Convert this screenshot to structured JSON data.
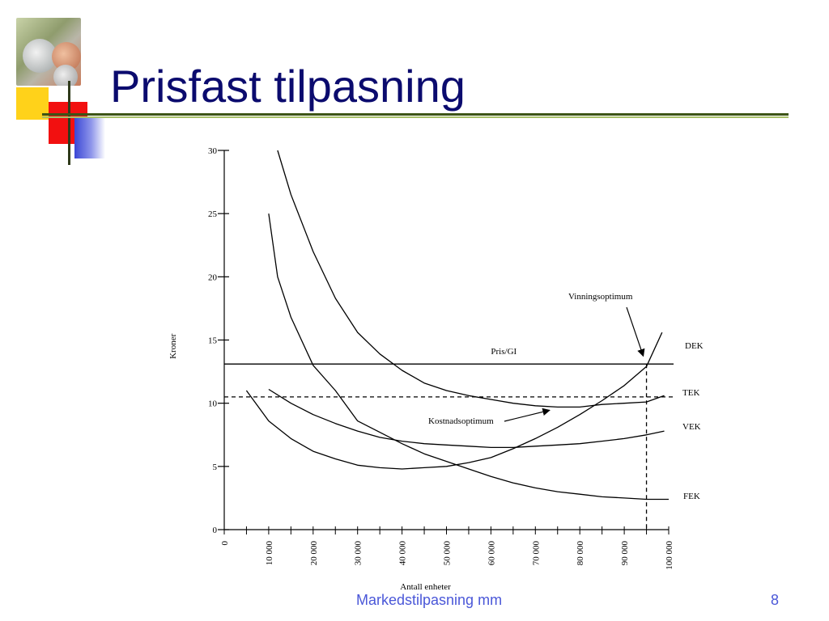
{
  "slide": {
    "title": "Prisfast tilpasning",
    "footer": "Markedstilpasning mm",
    "page_number": "8"
  },
  "colors": {
    "title": "#0b0b6e",
    "footer": "#4a57d8",
    "accent_line": "#3d5416"
  },
  "chart_data": {
    "type": "line",
    "title": "",
    "xlabel": "Antall enheter",
    "ylabel": "Kroner",
    "xlim": [
      0,
      100000
    ],
    "ylim": [
      0,
      30
    ],
    "xticks": [
      0,
      10000,
      20000,
      30000,
      40000,
      50000,
      60000,
      70000,
      80000,
      90000,
      100000
    ],
    "xtick_labels": [
      "0",
      "10 000",
      "20 000",
      "30 000",
      "40 000",
      "50 000",
      "60 000",
      "70 000",
      "80 000",
      "90 000",
      "100 000"
    ],
    "yticks": [
      0,
      5,
      10,
      15,
      20,
      25,
      30
    ],
    "ytick_labels": [
      "0",
      "5",
      "10",
      "15",
      "20",
      "25",
      "30"
    ],
    "series": [
      {
        "name": "DEK",
        "x": [
          12000,
          15000,
          20000,
          25000,
          30000,
          35000,
          40000,
          45000,
          50000,
          55000,
          60000,
          65000,
          70000,
          75000,
          80000,
          85000,
          90000,
          95000,
          99000
        ],
        "y": [
          30,
          26.5,
          22,
          18.3,
          15.6,
          13.9,
          12.6,
          11.6,
          11.0,
          10.6,
          10.3,
          10.0,
          9.8,
          9.7,
          9.7,
          9.9,
          10.0,
          10.1,
          10.6
        ]
      },
      {
        "name": "TEK",
        "x": [
          5000,
          10000,
          15000,
          20000,
          25000,
          30000,
          35000,
          40000,
          45000,
          50000,
          55000,
          60000,
          65000,
          70000,
          75000,
          80000,
          85000,
          90000,
          95000,
          98500
        ],
        "y": [
          11.0,
          8.6,
          7.2,
          6.2,
          5.6,
          5.1,
          4.9,
          4.8,
          4.9,
          5.0,
          5.3,
          5.7,
          6.4,
          7.2,
          8.1,
          9.1,
          10.2,
          11.4,
          12.9,
          15.6
        ]
      },
      {
        "name": "VEK",
        "x": [
          10000,
          15000,
          20000,
          25000,
          30000,
          35000,
          40000,
          45000,
          50000,
          55000,
          60000,
          65000,
          70000,
          75000,
          80000,
          85000,
          90000,
          95000,
          99000
        ],
        "y": [
          11.1,
          10.0,
          9.1,
          8.4,
          7.8,
          7.3,
          7.0,
          6.8,
          6.7,
          6.6,
          6.5,
          6.5,
          6.6,
          6.7,
          6.8,
          7.0,
          7.2,
          7.5,
          7.8
        ]
      },
      {
        "name": "FEK",
        "x": [
          10000,
          12000,
          15000,
          20000,
          25000,
          30000,
          35000,
          40000,
          45000,
          50000,
          55000,
          60000,
          65000,
          70000,
          75000,
          80000,
          85000,
          90000,
          95000,
          100000
        ],
        "y": [
          25.0,
          20.0,
          16.8,
          13.0,
          11.0,
          8.6,
          7.7,
          6.8,
          6.0,
          5.4,
          4.8,
          4.2,
          3.7,
          3.3,
          3.0,
          2.8,
          2.6,
          2.5,
          2.4,
          2.4
        ]
      }
    ],
    "reference_lines": [
      {
        "label": "Pris/GI",
        "y": 13.1,
        "style": "solid"
      },
      {
        "label": "",
        "y": 10.5,
        "style": "dashed"
      },
      {
        "label": "",
        "x": 95000,
        "style": "dashed"
      }
    ],
    "annotations": [
      {
        "text": "Vinningsoptimum",
        "target": [
          95000,
          13.1
        ]
      },
      {
        "text": "Kostnadsoptimum",
        "target": [
          75000,
          9.7
        ]
      }
    ],
    "grid": false,
    "legend": "none"
  }
}
